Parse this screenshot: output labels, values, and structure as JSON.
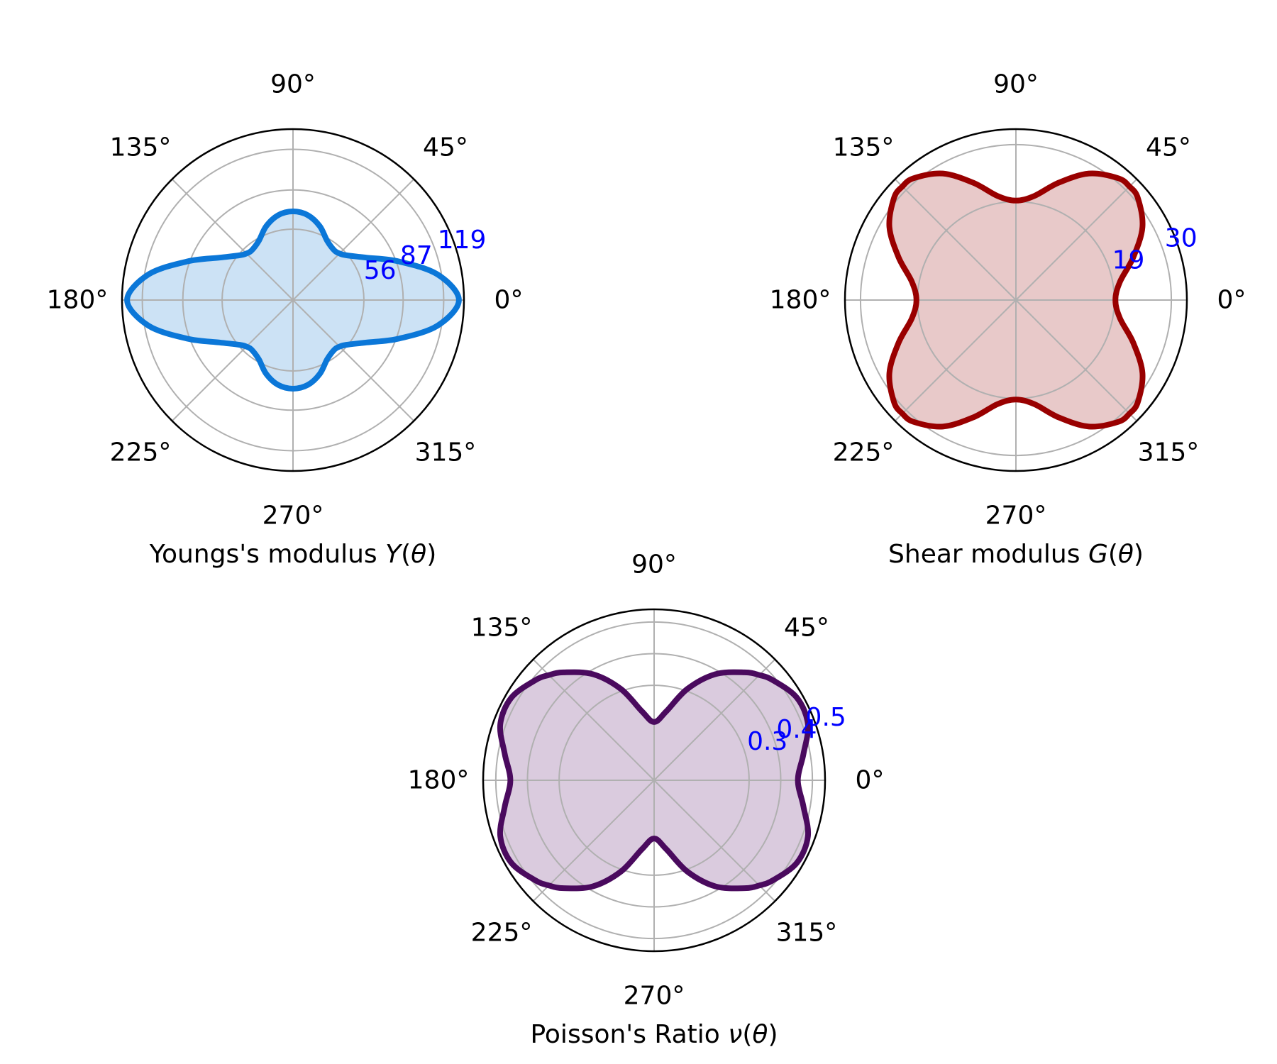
{
  "chart_data": [
    {
      "type": "polar",
      "xlabel": "Youngs's modulus Y(θ)",
      "xlabel_parts": {
        "prefix": "Youngs's modulus ",
        "symbol": "Y",
        "open": "(",
        "theta": "θ",
        "close": ")"
      },
      "angle_ticks": [
        "0°",
        "45°",
        "90°",
        "135°",
        "180°",
        "225°",
        "270°",
        "315°"
      ],
      "radial_ticks": [
        56,
        87,
        119
      ],
      "rlim": [
        0,
        135
      ],
      "radial_tick_color": "#0000ff",
      "line_color": "#0b77d8",
      "fill_color": "#cce2f5",
      "grid": true,
      "series": [
        {
          "theta_deg": [
            0,
            10,
            20,
            30,
            40,
            45,
            50,
            60,
            70,
            80,
            90,
            100,
            110,
            120,
            130,
            135,
            140,
            150,
            160,
            170,
            180,
            190,
            200,
            210,
            220,
            225,
            230,
            240,
            250,
            260,
            270,
            280,
            290,
            300,
            310,
            315,
            320,
            330,
            340,
            350
          ],
          "r": [
            131,
            116,
            89,
            67,
            55,
            52,
            51,
            54,
            62,
            68,
            70,
            68,
            62,
            54,
            51,
            52,
            55,
            67,
            89,
            116,
            131,
            116,
            89,
            67,
            55,
            52,
            51,
            54,
            62,
            68,
            70,
            68,
            62,
            54,
            51,
            52,
            55,
            67,
            89,
            116
          ]
        }
      ]
    },
    {
      "type": "polar",
      "xlabel": "Shear modulus G(θ)",
      "xlabel_parts": {
        "prefix": "Shear modulus ",
        "symbol": "G",
        "open": "(",
        "theta": "θ",
        "close": ")"
      },
      "angle_ticks": [
        "0°",
        "45°",
        "90°",
        "135°",
        "180°",
        "225°",
        "270°",
        "315°"
      ],
      "radial_ticks": [
        19,
        30
      ],
      "rlim": [
        0,
        33
      ],
      "radial_tick_color": "#0000ff",
      "line_color": "#990000",
      "fill_color": "#e8c9c9",
      "grid": true,
      "series": [
        {
          "theta_deg": [
            0,
            10,
            20,
            30,
            40,
            45,
            50,
            60,
            70,
            80,
            90,
            100,
            110,
            120,
            130,
            135,
            140,
            150,
            160,
            170,
            180,
            190,
            200,
            210,
            220,
            225,
            230,
            240,
            250,
            260,
            270,
            280,
            290,
            300,
            310,
            315,
            320,
            330,
            340,
            350
          ],
          "r": [
            19.2,
            20.4,
            24.1,
            28.2,
            30.7,
            31.0,
            30.7,
            28.2,
            24.1,
            20.4,
            19.2,
            20.4,
            24.1,
            28.2,
            30.7,
            31.0,
            30.7,
            28.2,
            24.1,
            20.4,
            19.2,
            20.4,
            24.1,
            28.2,
            30.7,
            31.0,
            30.7,
            28.2,
            24.1,
            20.4,
            19.2,
            20.4,
            24.1,
            28.2,
            30.7,
            31.0,
            30.7,
            28.2,
            24.1,
            20.4
          ]
        }
      ]
    },
    {
      "type": "polar",
      "xlabel": "Poisson's Ratio ν(θ)",
      "xlabel_parts": {
        "prefix": "Poisson's Ratio ",
        "symbol": "ν",
        "open": "(",
        "theta": "θ",
        "close": ")"
      },
      "angle_ticks": [
        "0°",
        "45°",
        "90°",
        "135°",
        "180°",
        "225°",
        "270°",
        "315°"
      ],
      "radial_ticks": [
        0.3,
        0.4,
        0.5
      ],
      "rlim": [
        0,
        0.54
      ],
      "radial_tick_color": "#0000ff",
      "line_color": "#4a0a5e",
      "fill_color": "#dacbde",
      "grid": true,
      "series": [
        {
          "theta_deg": [
            0,
            10,
            20,
            30,
            40,
            45,
            50,
            60,
            70,
            80,
            90,
            100,
            110,
            120,
            130,
            135,
            140,
            150,
            160,
            170,
            180,
            190,
            200,
            210,
            220,
            225,
            230,
            240,
            250,
            260,
            270,
            280,
            290,
            300,
            310,
            315,
            320,
            330,
            340,
            350
          ],
          "r": [
            0.454,
            0.479,
            0.517,
            0.521,
            0.491,
            0.47,
            0.445,
            0.387,
            0.307,
            0.221,
            0.184,
            0.221,
            0.307,
            0.387,
            0.445,
            0.47,
            0.491,
            0.521,
            0.517,
            0.479,
            0.454,
            0.479,
            0.517,
            0.521,
            0.491,
            0.47,
            0.445,
            0.387,
            0.307,
            0.221,
            0.184,
            0.221,
            0.307,
            0.387,
            0.445,
            0.47,
            0.491,
            0.521,
            0.517,
            0.479
          ]
        }
      ]
    }
  ]
}
